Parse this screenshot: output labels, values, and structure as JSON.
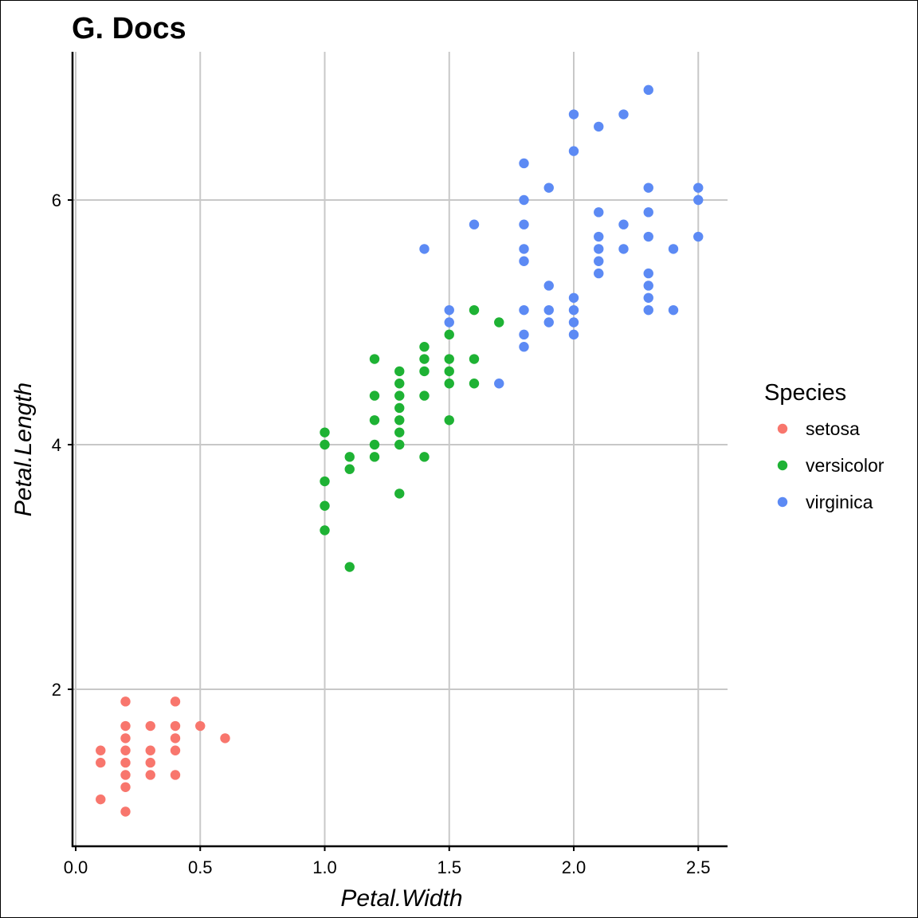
{
  "colors": {
    "setosa": "#f8766d",
    "versicolor": "#1eb234",
    "virginica": "#5c8af4"
  },
  "chart_data": {
    "type": "scatter",
    "title": "G. Docs",
    "xlabel": "Petal.Width",
    "ylabel": "Petal.Length",
    "xlim": [
      0.0,
      2.6
    ],
    "ylim": [
      0.8,
      7.1
    ],
    "x_ticks": [
      "0.0",
      "0.5",
      "1.0",
      "1.5",
      "2.0",
      "2.5"
    ],
    "y_ticks": [
      "2",
      "4",
      "6"
    ],
    "grid": true,
    "legend": {
      "title": "Species",
      "position": "right"
    },
    "series": [
      {
        "name": "setosa",
        "points": [
          [
            0.1,
            1.1
          ],
          [
            0.1,
            1.4
          ],
          [
            0.1,
            1.5
          ],
          [
            0.2,
            1.0
          ],
          [
            0.2,
            1.2
          ],
          [
            0.2,
            1.3
          ],
          [
            0.2,
            1.4
          ],
          [
            0.2,
            1.5
          ],
          [
            0.2,
            1.6
          ],
          [
            0.2,
            1.7
          ],
          [
            0.2,
            1.9
          ],
          [
            0.3,
            1.3
          ],
          [
            0.3,
            1.4
          ],
          [
            0.3,
            1.5
          ],
          [
            0.3,
            1.7
          ],
          [
            0.4,
            1.3
          ],
          [
            0.4,
            1.5
          ],
          [
            0.4,
            1.6
          ],
          [
            0.4,
            1.7
          ],
          [
            0.4,
            1.9
          ],
          [
            0.5,
            1.7
          ],
          [
            0.6,
            1.6
          ]
        ]
      },
      {
        "name": "versicolor",
        "points": [
          [
            1.0,
            3.3
          ],
          [
            1.0,
            3.5
          ],
          [
            1.0,
            3.7
          ],
          [
            1.0,
            4.0
          ],
          [
            1.0,
            4.1
          ],
          [
            1.1,
            3.0
          ],
          [
            1.1,
            3.8
          ],
          [
            1.1,
            3.9
          ],
          [
            1.2,
            3.9
          ],
          [
            1.2,
            4.0
          ],
          [
            1.2,
            4.2
          ],
          [
            1.2,
            4.4
          ],
          [
            1.2,
            4.7
          ],
          [
            1.3,
            3.6
          ],
          [
            1.3,
            4.0
          ],
          [
            1.3,
            4.1
          ],
          [
            1.3,
            4.2
          ],
          [
            1.3,
            4.3
          ],
          [
            1.3,
            4.4
          ],
          [
            1.3,
            4.5
          ],
          [
            1.3,
            4.6
          ],
          [
            1.4,
            3.9
          ],
          [
            1.4,
            4.4
          ],
          [
            1.4,
            4.6
          ],
          [
            1.4,
            4.7
          ],
          [
            1.4,
            4.8
          ],
          [
            1.5,
            4.2
          ],
          [
            1.5,
            4.5
          ],
          [
            1.5,
            4.6
          ],
          [
            1.5,
            4.7
          ],
          [
            1.5,
            4.9
          ],
          [
            1.6,
            4.5
          ],
          [
            1.6,
            4.7
          ],
          [
            1.6,
            5.1
          ],
          [
            1.7,
            5.0
          ]
        ]
      },
      {
        "name": "virginica",
        "points": [
          [
            1.4,
            5.6
          ],
          [
            1.5,
            5.0
          ],
          [
            1.5,
            5.1
          ],
          [
            1.6,
            5.8
          ],
          [
            1.7,
            4.5
          ],
          [
            1.8,
            4.8
          ],
          [
            1.8,
            4.9
          ],
          [
            1.8,
            5.1
          ],
          [
            1.8,
            5.5
          ],
          [
            1.8,
            5.6
          ],
          [
            1.8,
            5.8
          ],
          [
            1.8,
            6.0
          ],
          [
            1.8,
            6.3
          ],
          [
            1.9,
            5.0
          ],
          [
            1.9,
            5.1
          ],
          [
            1.9,
            5.3
          ],
          [
            1.9,
            6.1
          ],
          [
            2.0,
            4.9
          ],
          [
            2.0,
            5.0
          ],
          [
            2.0,
            5.1
          ],
          [
            2.0,
            5.2
          ],
          [
            2.0,
            6.4
          ],
          [
            2.0,
            6.7
          ],
          [
            2.1,
            5.4
          ],
          [
            2.1,
            5.5
          ],
          [
            2.1,
            5.6
          ],
          [
            2.1,
            5.7
          ],
          [
            2.1,
            5.9
          ],
          [
            2.1,
            6.6
          ],
          [
            2.2,
            5.6
          ],
          [
            2.2,
            5.8
          ],
          [
            2.2,
            6.7
          ],
          [
            2.3,
            5.1
          ],
          [
            2.3,
            5.2
          ],
          [
            2.3,
            5.3
          ],
          [
            2.3,
            5.4
          ],
          [
            2.3,
            5.7
          ],
          [
            2.3,
            5.9
          ],
          [
            2.3,
            6.1
          ],
          [
            2.3,
            6.9
          ],
          [
            2.4,
            5.1
          ],
          [
            2.4,
            5.6
          ],
          [
            2.5,
            5.7
          ],
          [
            2.5,
            6.0
          ],
          [
            2.5,
            6.1
          ]
        ]
      }
    ]
  }
}
